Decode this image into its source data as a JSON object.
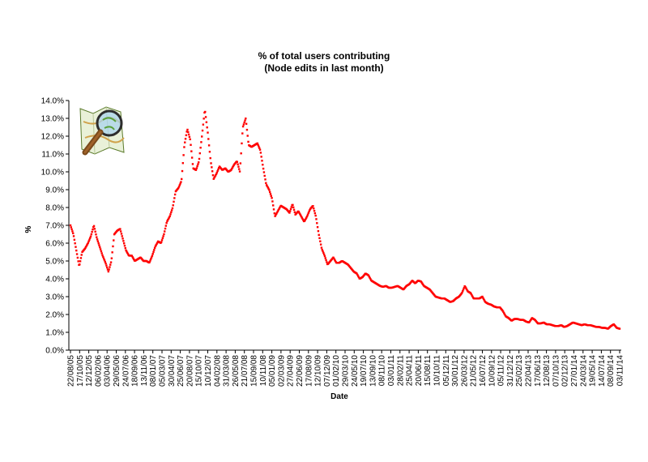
{
  "chart_data": {
    "type": "scatter",
    "title": "% of total users contributing",
    "subtitle": "(Node edits in last month)",
    "xlabel": "Date",
    "ylabel": "%",
    "ylim": [
      0,
      14
    ],
    "y_ticks": [
      "0.0%",
      "1.0%",
      "2.0%",
      "3.0%",
      "4.0%",
      "5.0%",
      "6.0%",
      "7.0%",
      "8.0%",
      "9.0%",
      "10.0%",
      "11.0%",
      "12.0%",
      "13.0%",
      "14.0%"
    ],
    "x_ticks": [
      "22/08/05",
      "17/10/05",
      "12/12/05",
      "06/02/06",
      "03/04/06",
      "29/05/06",
      "24/07/06",
      "18/09/06",
      "13/11/06",
      "08/01/07",
      "05/03/07",
      "30/04/07",
      "25/06/07",
      "20/08/07",
      "15/10/07",
      "10/12/07",
      "04/02/08",
      "31/03/08",
      "26/05/08",
      "21/07/08",
      "15/09/08",
      "10/11/08",
      "05/01/09",
      "02/03/09",
      "27/04/09",
      "22/06/09",
      "17/08/09",
      "12/10/09",
      "07/12/09",
      "01/02/10",
      "29/03/10",
      "24/05/10",
      "19/07/10",
      "13/09/10",
      "08/11/10",
      "03/01/11",
      "28/02/11",
      "25/04/11",
      "20/06/11",
      "15/08/11",
      "10/10/11",
      "05/12/11",
      "30/01/12",
      "26/03/12",
      "21/05/12",
      "16/07/12",
      "10/09/12",
      "05/11/12",
      "31/12/12",
      "25/02/13",
      "22/04/13",
      "17/06/13",
      "12/08/13",
      "07/10/13",
      "02/12/13",
      "27/01/14",
      "24/03/14",
      "19/05/14",
      "14/07/14",
      "08/09/14",
      "03/11/14"
    ],
    "grid": false,
    "legend": "none",
    "marker_color": "#ff0000",
    "points_per_tick": 14,
    "series": [
      {
        "x_start": "22/08/05",
        "x_end": "03/11/14",
        "y_unit": "%",
        "values": [
          7.0,
          6.5,
          5.6,
          4.7,
          5.5,
          5.7,
          6.0,
          6.4,
          7.0,
          6.3,
          5.8,
          5.3,
          4.9,
          4.4,
          5.0,
          6.5,
          6.7,
          6.8,
          6.2,
          5.6,
          5.3,
          5.3,
          5.0,
          5.1,
          5.2,
          5.0,
          5.0,
          4.9,
          5.3,
          5.8,
          6.1,
          6.0,
          6.5,
          7.2,
          7.5,
          8.0,
          8.9,
          9.1,
          9.5,
          11.5,
          12.4,
          11.8,
          10.2,
          10.1,
          10.6,
          12.0,
          13.5,
          12.2,
          10.6,
          9.6,
          9.9,
          10.3,
          10.1,
          10.2,
          10.0,
          10.1,
          10.4,
          10.6,
          10.0,
          12.5,
          13.0,
          11.5,
          11.4,
          11.5,
          11.6,
          11.2,
          10.2,
          9.3,
          9.0,
          8.5,
          7.5,
          7.8,
          8.1,
          8.0,
          7.9,
          7.7,
          8.2,
          7.6,
          7.8,
          7.5,
          7.2,
          7.5,
          7.9,
          8.1,
          7.5,
          6.5,
          5.7,
          5.3,
          4.8,
          5.0,
          5.2,
          4.9,
          4.9,
          5.0,
          4.9,
          4.8,
          4.6,
          4.4,
          4.3,
          4.0,
          4.1,
          4.3,
          4.2,
          3.9,
          3.8,
          3.7,
          3.6,
          3.55,
          3.6,
          3.5,
          3.5,
          3.55,
          3.6,
          3.5,
          3.4,
          3.6,
          3.7,
          3.9,
          3.75,
          3.9,
          3.85,
          3.6,
          3.5,
          3.4,
          3.2,
          3.0,
          2.95,
          2.9,
          2.9,
          2.8,
          2.7,
          2.75,
          2.9,
          3.0,
          3.2,
          3.6,
          3.3,
          3.2,
          2.9,
          2.9,
          2.9,
          3.0,
          2.7,
          2.6,
          2.55,
          2.45,
          2.4,
          2.4,
          2.2,
          1.9,
          1.8,
          1.65,
          1.75,
          1.75,
          1.7,
          1.7,
          1.6,
          1.55,
          1.8,
          1.7,
          1.5,
          1.5,
          1.55,
          1.45,
          1.45,
          1.4,
          1.35,
          1.35,
          1.4,
          1.3,
          1.35,
          1.45,
          1.55,
          1.5,
          1.45,
          1.4,
          1.45,
          1.4,
          1.4,
          1.35,
          1.3,
          1.3,
          1.25,
          1.25,
          1.2,
          1.35,
          1.45,
          1.25,
          1.2
        ]
      }
    ]
  },
  "logo": {
    "name": "openstreetmap-magnifier-logo"
  }
}
